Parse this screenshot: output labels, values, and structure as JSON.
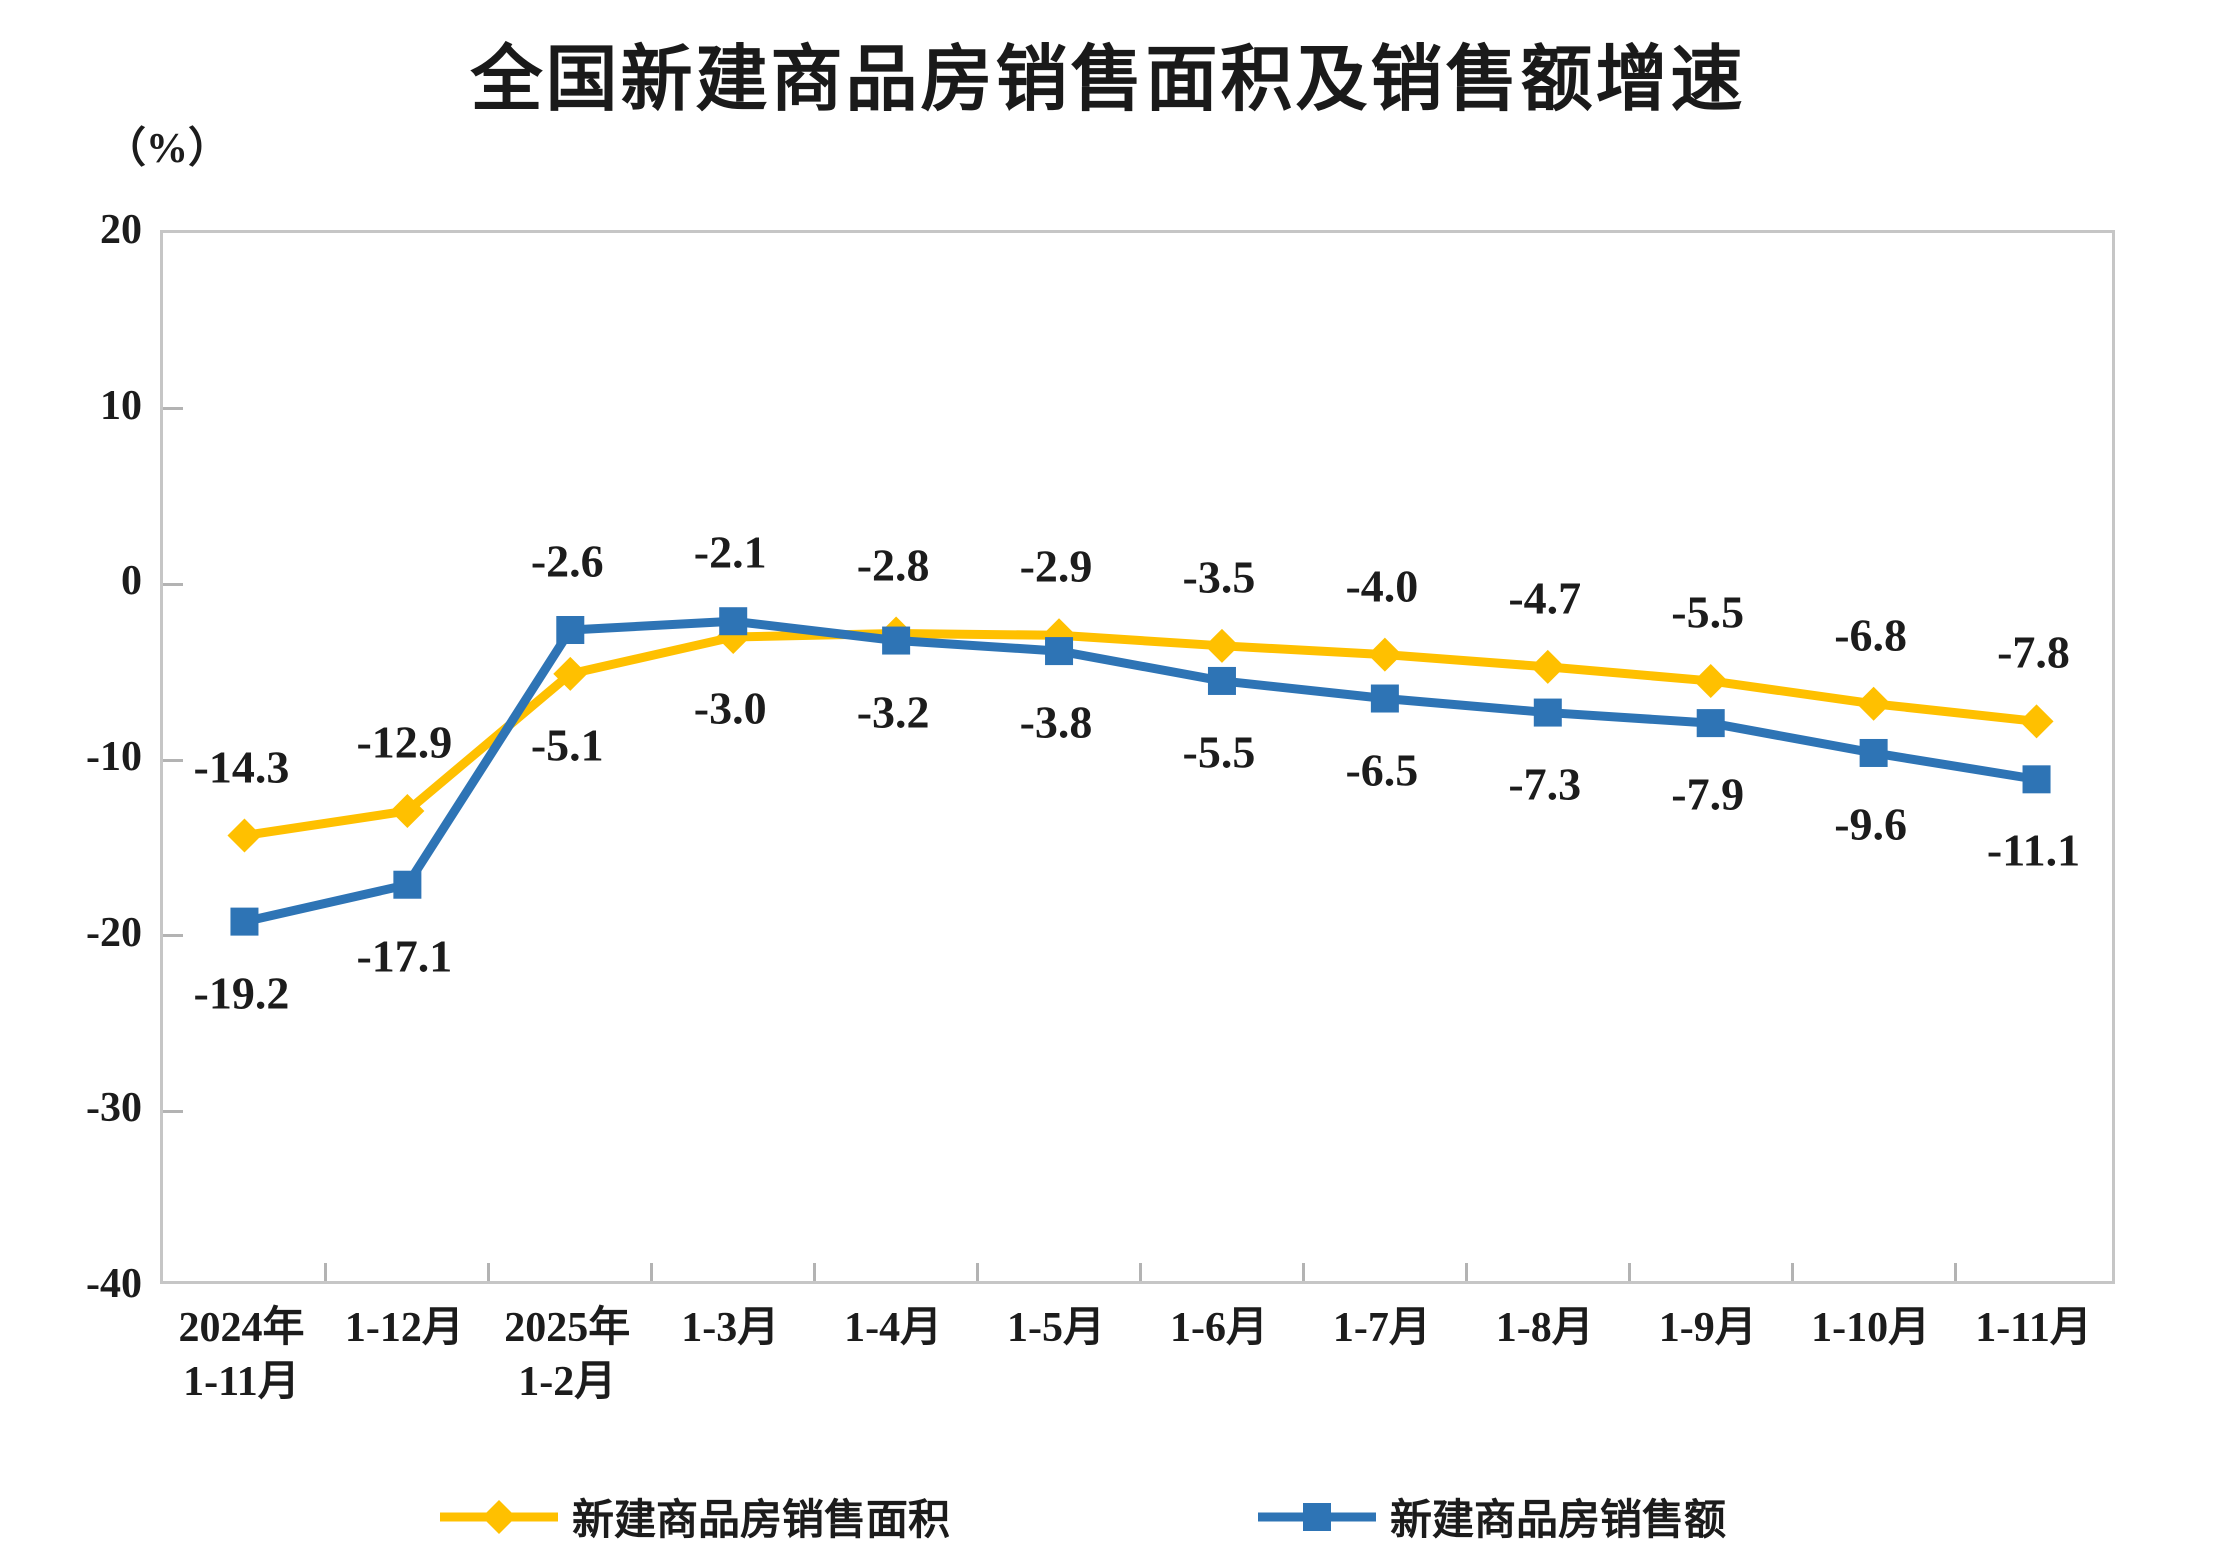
{
  "chart": {
    "title": "全国新建商品房销售面积及销售额增速",
    "unit_label": "（%）"
  },
  "chart_data": {
    "type": "line",
    "title": "全国新建商品房销售面积及销售额增速",
    "unit": "（%）",
    "categories": [
      "2024年\n1-11月",
      "1-12月",
      "2025年\n1-2月",
      "1-3月",
      "1-4月",
      "1-5月",
      "1-6月",
      "1-7月",
      "1-8月",
      "1-9月",
      "1-10月",
      "1-11月"
    ],
    "series": [
      {
        "name": "新建商品房销售面积",
        "color": "#FFC000",
        "marker": "diamond",
        "values": [
          -14.3,
          -12.9,
          -5.1,
          -3.0,
          -2.8,
          -2.9,
          -3.5,
          -4.0,
          -4.7,
          -5.5,
          -6.8,
          -7.8
        ]
      },
      {
        "name": "新建商品房销售额",
        "color": "#2E74B5",
        "marker": "square",
        "values": [
          -19.2,
          -17.1,
          -2.6,
          -2.1,
          -3.2,
          -3.8,
          -5.5,
          -6.5,
          -7.3,
          -7.9,
          -9.6,
          -11.1
        ]
      }
    ],
    "y_axis": {
      "min": -40,
      "max": 20,
      "step": 10,
      "ticks": [
        20,
        10,
        0,
        -10,
        -20,
        -30,
        -40
      ]
    },
    "x_axis_tick_marks": "inward-at-category-boundaries",
    "grid": false,
    "data_labels": "one-decimal, placed above the higher series and below the lower series at each point",
    "legend_position": "bottom",
    "plot_border_color": "#C6C6C6",
    "text_color": "#1C1C1C"
  }
}
